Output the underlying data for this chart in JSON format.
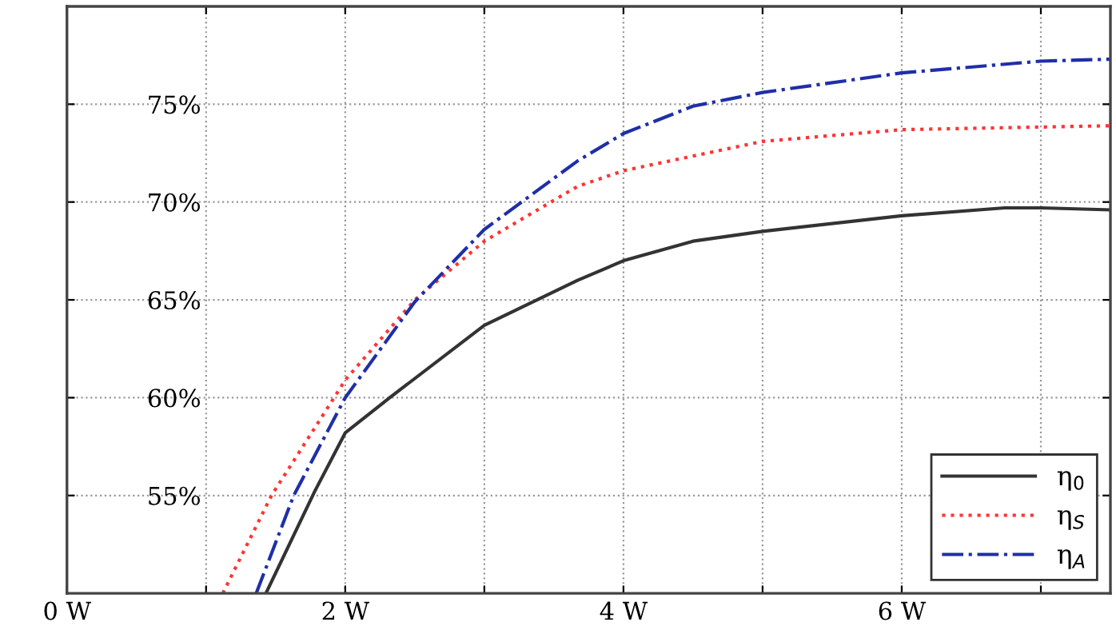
{
  "chart_data": {
    "type": "line",
    "xlim": [
      0,
      7.5
    ],
    "ylim": [
      50,
      80
    ],
    "xticks": [
      {
        "value": 0,
        "label": "0 W"
      },
      {
        "value": 1,
        "label": null
      },
      {
        "value": 2,
        "label": "2 W"
      },
      {
        "value": 3,
        "label": null
      },
      {
        "value": 4,
        "label": "4 W"
      },
      {
        "value": 5,
        "label": null
      },
      {
        "value": 6,
        "label": "6 W"
      },
      {
        "value": 7,
        "label": null
      }
    ],
    "yticks": [
      {
        "value": 55,
        "label": "55%"
      },
      {
        "value": 60,
        "label": "60%"
      },
      {
        "value": 65,
        "label": "65%"
      },
      {
        "value": 70,
        "label": "70%"
      },
      {
        "value": 75,
        "label": "75%"
      }
    ],
    "grid": true,
    "legend": "bottom right",
    "marker": "none",
    "series": [
      {
        "name": "η$_{0}$",
        "color": "#333333",
        "line_style": "solid",
        "x": [
          1.43,
          1.78,
          2.0,
          2.32,
          3.0,
          3.67,
          4.0,
          4.5,
          5.0,
          6.0,
          6.74,
          7.0,
          7.5
        ],
        "values": [
          50,
          55.2,
          58.2,
          60,
          63.7,
          66.0,
          67.0,
          68.0,
          68.5,
          69.3,
          69.7,
          69.7,
          69.6
        ]
      },
      {
        "name": "η$_{S}$",
        "color": "#ff3333",
        "line_style": "dotted",
        "x": [
          1.12,
          1.47,
          1.92,
          2.0,
          2.5,
          3.0,
          3.67,
          4.0,
          5.0,
          6.0,
          7.5
        ],
        "values": [
          50,
          55,
          60,
          60.9,
          65,
          68,
          70.8,
          71.6,
          73.1,
          73.7,
          73.9
        ]
      },
      {
        "name": "η$_{A}$",
        "color": "#1f2fa8",
        "line_style": "dashdot",
        "x": [
          1.36,
          1.63,
          2.0,
          2.5,
          3.0,
          3.67,
          4.0,
          4.5,
          5.0,
          6.0,
          7.0,
          7.5
        ],
        "values": [
          50,
          55,
          60,
          64.9,
          68.6,
          72.1,
          73.5,
          74.9,
          75.6,
          76.6,
          77.2,
          77.3
        ]
      }
    ]
  }
}
